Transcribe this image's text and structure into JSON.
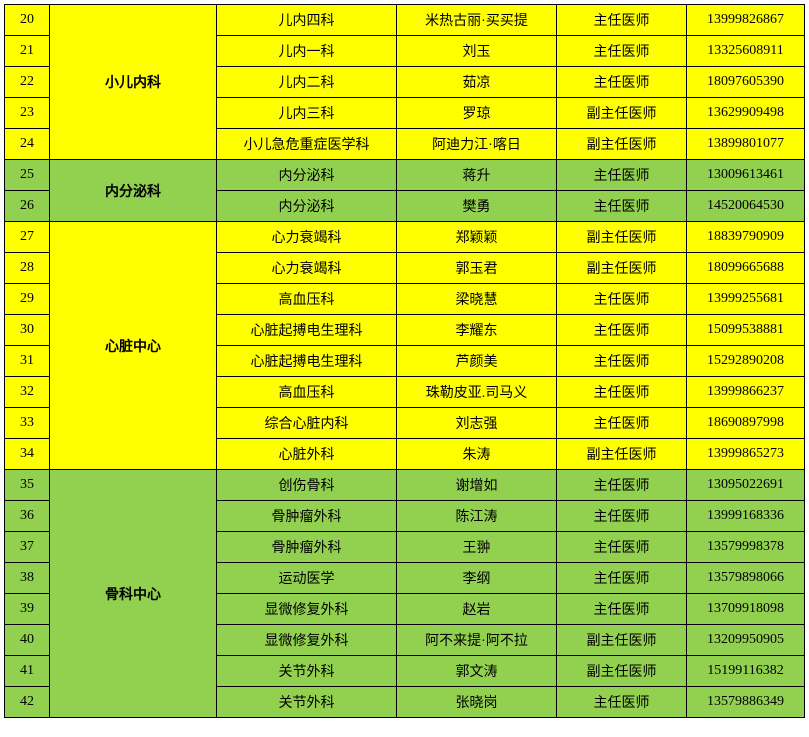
{
  "colors": {
    "yellow": "#ffff00",
    "green": "#92d050",
    "border": "#000000",
    "text": "#000000"
  },
  "groups": [
    {
      "dept": "小儿内科",
      "bg": "#ffff00",
      "rows": [
        {
          "num": "20",
          "sub": "儿内四科",
          "name": "米热古丽·买买提",
          "title": "主任医师",
          "phone": "13999826867"
        },
        {
          "num": "21",
          "sub": "儿内一科",
          "name": "刘玉",
          "title": "主任医师",
          "phone": "13325608911"
        },
        {
          "num": "22",
          "sub": "儿内二科",
          "name": "茹凉",
          "title": "主任医师",
          "phone": "18097605390"
        },
        {
          "num": "23",
          "sub": "儿内三科",
          "name": "罗琼",
          "title": "副主任医师",
          "phone": "13629909498"
        },
        {
          "num": "24",
          "sub": "小儿急危重症医学科",
          "name": "阿迪力江·喀日",
          "title": "副主任医师",
          "phone": "13899801077"
        }
      ]
    },
    {
      "dept": "内分泌科",
      "bg": "#92d050",
      "rows": [
        {
          "num": "25",
          "sub": "内分泌科",
          "name": "蒋升",
          "title": "主任医师",
          "phone": "13009613461"
        },
        {
          "num": "26",
          "sub": "内分泌科",
          "name": "樊勇",
          "title": "主任医师",
          "phone": "14520064530"
        }
      ]
    },
    {
      "dept": "心脏中心",
      "bg": "#ffff00",
      "rows": [
        {
          "num": "27",
          "sub": "心力衰竭科",
          "name": "郑颖颖",
          "title": "副主任医师",
          "phone": "18839790909"
        },
        {
          "num": "28",
          "sub": "心力衰竭科",
          "name": "郭玉君",
          "title": "副主任医师",
          "phone": "18099665688"
        },
        {
          "num": "29",
          "sub": "高血压科",
          "name": "梁晓慧",
          "title": "主任医师",
          "phone": "13999255681"
        },
        {
          "num": "30",
          "sub": "心脏起搏电生理科",
          "name": "李耀东",
          "title": "主任医师",
          "phone": "15099538881"
        },
        {
          "num": "31",
          "sub": "心脏起搏电生理科",
          "name": "芦颜美",
          "title": "主任医师",
          "phone": "15292890208"
        },
        {
          "num": "32",
          "sub": "高血压科",
          "name": "珠勒皮亚.司马义",
          "title": "主任医师",
          "phone": "13999866237"
        },
        {
          "num": "33",
          "sub": "综合心脏内科",
          "name": "刘志强",
          "title": "主任医师",
          "phone": "18690897998"
        },
        {
          "num": "34",
          "sub": "心脏外科",
          "name": "朱涛",
          "title": "副主任医师",
          "phone": "13999865273"
        }
      ]
    },
    {
      "dept": "骨科中心",
      "bg": "#92d050",
      "rows": [
        {
          "num": "35",
          "sub": "创伤骨科",
          "name": "谢增如",
          "title": "主任医师",
          "phone": "13095022691"
        },
        {
          "num": "36",
          "sub": "骨肿瘤外科",
          "name": "陈江涛",
          "title": "主任医师",
          "phone": "13999168336"
        },
        {
          "num": "37",
          "sub": "骨肿瘤外科",
          "name": "王翀",
          "title": "主任医师",
          "phone": "13579998378"
        },
        {
          "num": "38",
          "sub": "运动医学",
          "name": "李纲",
          "title": "主任医师",
          "phone": "13579898066"
        },
        {
          "num": "39",
          "sub": "显微修复外科",
          "name": "赵岩",
          "title": "主任医师",
          "phone": "13709918098"
        },
        {
          "num": "40",
          "sub": "显微修复外科",
          "name": "阿不来提·阿不拉",
          "title": "副主任医师",
          "phone": "13209950905"
        },
        {
          "num": "41",
          "sub": "关节外科",
          "name": "郭文涛",
          "title": "副主任医师",
          "phone": "15199116382"
        },
        {
          "num": "42",
          "sub": "关节外科",
          "name": "张晓岗",
          "title": "主任医师",
          "phone": "13579886349"
        }
      ]
    }
  ]
}
